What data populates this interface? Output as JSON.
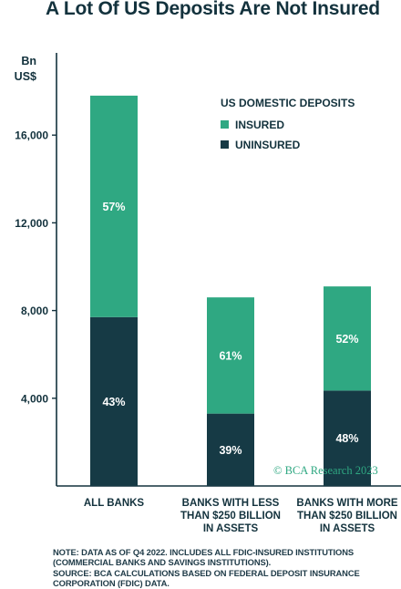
{
  "chart_data": {
    "type": "bar",
    "stacked": true,
    "title": "A Lot Of US Deposits Are Not Insured",
    "ylabel": "Bn\nUS$",
    "ylim": [
      0,
      19750
    ],
    "yticks": [
      4000,
      8000,
      12000,
      16000
    ],
    "ytick_labels": [
      "4,000",
      "8,000",
      "12,000",
      "16,000"
    ],
    "categories": [
      [
        "ALL BANKS"
      ],
      [
        "BANKS WITH LESS",
        "THAN $250 BILLION",
        "IN ASSETS"
      ],
      [
        "BANKS WITH MORE",
        "THAN $250 BILLION",
        "IN ASSETS"
      ]
    ],
    "legend_title": "US DOMESTIC DEPOSITS",
    "legend_position": "top-right",
    "series": [
      {
        "name": "UNINSURED",
        "color": "#163a45",
        "values": [
          7700,
          3300,
          4350
        ],
        "labels": [
          "43%",
          "39%",
          "48%"
        ]
      },
      {
        "name": "INSURED",
        "color": "#2fa882",
        "values": [
          10100,
          5300,
          4750
        ],
        "labels": [
          "57%",
          "61%",
          "52%"
        ]
      }
    ],
    "legend_order": [
      "INSURED",
      "UNINSURED"
    ],
    "grid": false
  },
  "footnotes": [
    "NOTE: DATA AS OF Q4 2022. INCLUDES ALL FDIC-INSURED INSTITUTIONS",
    "(COMMERCIAL BANKS AND SAVINGS INSTITUTIONS).",
    "SOURCE: BCA CALCULATIONS BASED ON FEDERAL DEPOSIT INSURANCE",
    "CORPORATION (FDIC) DATA."
  ],
  "watermark": "© BCA Research 2023"
}
